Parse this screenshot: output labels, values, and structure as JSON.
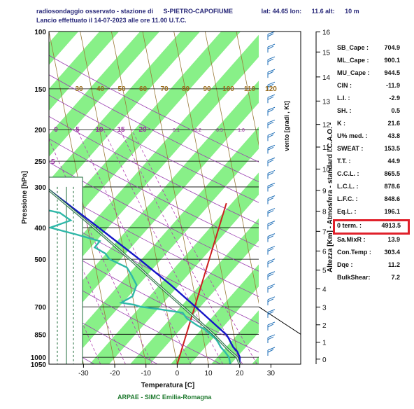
{
  "header": {
    "line1": "radiosondaggio osservato - stazione di",
    "station": "S-PIETRO-CAPOFIUME",
    "lat": "lat:  44.65 lon:",
    "lon": "11.6 alt:",
    "alt": "10 m",
    "line2": "Lancio effettuato il 14-07-2023 alle ore 11.00 U.T.C."
  },
  "footer": "ARPAE - SIMC  Emilia-Romagna",
  "indices": [
    {
      "label": "SB_Cape :",
      "value": "704.9",
      "highlight": false
    },
    {
      "label": "ML_Cape :",
      "value": "900.1",
      "highlight": false
    },
    {
      "label": "MU_Cape :",
      "value": "944.5",
      "highlight": false
    },
    {
      "label": "CIN     :",
      "value": "-11.9",
      "highlight": false
    },
    {
      "label": "L.I.    :",
      "value": "-2.9",
      "highlight": false
    },
    {
      "label": "SH.     :",
      "value": "0.5",
      "highlight": false
    },
    {
      "label": "K       :",
      "value": "21.6",
      "highlight": false
    },
    {
      "label": "U% med. :",
      "value": "43.8",
      "highlight": false
    },
    {
      "label": "SWEAT   :",
      "value": "153.5",
      "highlight": false
    },
    {
      "label": "T.T.    :",
      "value": "44.9",
      "highlight": false
    },
    {
      "label": "C.C.L.  :",
      "value": "865.5",
      "highlight": false
    },
    {
      "label": "L.C.L.  :",
      "value": "878.6",
      "highlight": false
    },
    {
      "label": "L.F.C.  :",
      "value": "848.6",
      "highlight": false
    },
    {
      "label": "Eq.L.   :",
      "value": "196.1",
      "highlight": false
    },
    {
      "label": "0 term.  :",
      "value": "4913.5",
      "highlight": true
    },
    {
      "label": "Sa.MixR  :",
      "value": "13.9",
      "highlight": false
    },
    {
      "label": "Con.Temp :",
      "value": "303.4",
      "highlight": false
    },
    {
      "label": "Dqe      :",
      "value": "11.2",
      "highlight": false
    },
    {
      "label": "BulkShear:",
      "value": "7.2",
      "highlight": false
    }
  ],
  "chart_data": {
    "type": "line",
    "title": "",
    "xlabel": "Temperatura [C]",
    "ylabel": "Pressione [hPa]",
    "y2label": "Altezza [Km] - Atmosfera - standard I.C.A.O. -",
    "wind_label": "vento  [gradi , Kt]",
    "xlim": [
      -39,
      38
    ],
    "ylim": [
      1050,
      100
    ],
    "x_ticks": [
      -30,
      -20,
      -10,
      0,
      10,
      20,
      30
    ],
    "p_ticks": [
      100,
      150,
      200,
      250,
      300,
      400,
      500,
      700,
      850,
      1000,
      1050
    ],
    "z_ticks": [
      0,
      1,
      2,
      3,
      4,
      5,
      6,
      7,
      8,
      9,
      10,
      11,
      12,
      13,
      14,
      15,
      16
    ],
    "isotherm_label_values": [
      30,
      40,
      50,
      60,
      70,
      80,
      90,
      100,
      110,
      120
    ],
    "mixing_ratio_labels": [
      "0",
      "5",
      "10",
      "15",
      "20"
    ],
    "mixing_ratio_small_labels": [
      "0.1",
      "0.2",
      "0.5",
      "1.0"
    ],
    "edge_label_250": "5",
    "series": [
      {
        "kind": "temperature",
        "color": "#1515c8",
        "points": [
          [
            1050,
            20
          ],
          [
            1000,
            20.5
          ],
          [
            960,
            20
          ],
          [
            930,
            19
          ],
          [
            900,
            18.5
          ],
          [
            880,
            18.2
          ],
          [
            860,
            17.8
          ],
          [
            850,
            17.5
          ],
          [
            800,
            15
          ],
          [
            700,
            9.5
          ],
          [
            600,
            3
          ],
          [
            500,
            -5.5
          ],
          [
            400,
            -16.5
          ],
          [
            300,
            -31
          ],
          [
            250,
            -40
          ],
          [
            200,
            -51
          ],
          [
            180,
            -51
          ],
          [
            160,
            -51
          ],
          [
            150,
            -53
          ],
          [
            130,
            -56
          ],
          [
            120,
            -57
          ],
          [
            110,
            -59
          ],
          [
            100,
            -60
          ]
        ]
      },
      {
        "kind": "dewpoint",
        "color": "#2fb8a8",
        "points": [
          [
            1050,
            17
          ],
          [
            1000,
            17
          ],
          [
            960,
            16
          ],
          [
            930,
            15
          ],
          [
            900,
            14.5
          ],
          [
            880,
            14
          ],
          [
            860,
            13
          ],
          [
            850,
            12.5
          ],
          [
            820,
            11
          ],
          [
            800,
            9
          ],
          [
            760,
            6
          ],
          [
            730,
            5
          ],
          [
            710,
            -3
          ],
          [
            700,
            -8
          ],
          [
            690,
            -10
          ],
          [
            680,
            -14
          ],
          [
            650,
            -10
          ],
          [
            600,
            -8
          ],
          [
            560,
            -9
          ],
          [
            530,
            -10
          ],
          [
            500,
            -15
          ],
          [
            480,
            -16
          ],
          [
            460,
            -19
          ],
          [
            440,
            -17
          ],
          [
            420,
            -24
          ],
          [
            400,
            -32
          ],
          [
            380,
            -25
          ],
          [
            360,
            -28
          ],
          [
            340,
            -40
          ],
          [
            320,
            -36
          ],
          [
            300,
            -40
          ],
          [
            280,
            -45
          ],
          [
            260,
            -48
          ],
          [
            240,
            -57
          ],
          [
            220,
            -62
          ],
          [
            200,
            -70
          ],
          [
            180,
            -70
          ],
          [
            160,
            -72
          ],
          [
            150,
            -75
          ],
          [
            130,
            -80
          ],
          [
            120,
            -86
          ],
          [
            110,
            -88
          ],
          [
            100,
            -90
          ]
        ]
      },
      {
        "kind": "parcel",
        "color": "#1d6b3a",
        "points": [
          [
            1050,
            20
          ],
          [
            1000,
            19.6
          ],
          [
            950,
            17.4
          ],
          [
            880,
            14.7
          ],
          [
            850,
            13.5
          ],
          [
            800,
            11
          ],
          [
            700,
            5.5
          ],
          [
            600,
            -1
          ],
          [
            500,
            -8.5
          ],
          [
            400,
            -18
          ],
          [
            300,
            -31
          ],
          [
            250,
            -40
          ],
          [
            200,
            -51
          ]
        ]
      }
    ],
    "wind_levels": 26,
    "grid": true
  }
}
